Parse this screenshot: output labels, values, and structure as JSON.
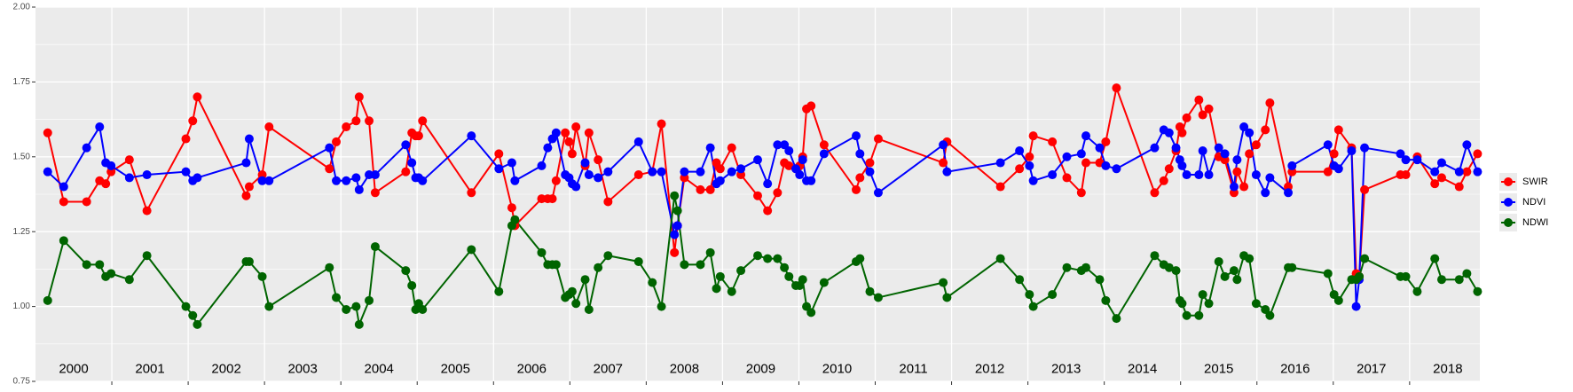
{
  "chart_data": {
    "type": "line",
    "x": [
      2000.16,
      2000.37,
      2000.67,
      2000.84,
      2000.92,
      2000.99,
      2001.23,
      2001.46,
      2001.97,
      2002.06,
      2002.12,
      2002.76,
      2002.8,
      2002.97,
      2003.06,
      2003.85,
      2003.94,
      2004.07,
      2004.2,
      2004.24,
      2004.37,
      2004.45,
      2004.85,
      2004.93,
      2004.98,
      2005.02,
      2005.07,
      2005.71,
      2006.07,
      2006.24,
      2006.28,
      2006.63,
      2006.71,
      2006.77,
      2006.82,
      2006.94,
      2006.99,
      2007.03,
      2007.08,
      2007.2,
      2007.25,
      2007.37,
      2007.5,
      2007.9,
      2008.08,
      2008.2,
      2008.37,
      2008.41,
      2008.5,
      2008.71,
      2008.84,
      2008.92,
      2008.97,
      2009.12,
      2009.24,
      2009.46,
      2009.59,
      2009.72,
      2009.81,
      2009.87,
      2009.96,
      2010.01,
      2010.05,
      2010.1,
      2010.16,
      2010.33,
      2010.75,
      2010.8,
      2010.93,
      2011.04,
      2011.89,
      2011.94,
      2012.64,
      2012.89,
      2013.02,
      2013.07,
      2013.32,
      2013.51,
      2013.7,
      2013.76,
      2013.94,
      2014.02,
      2014.16,
      2014.66,
      2014.78,
      2014.85,
      2014.94,
      2014.99,
      2015.02,
      2015.08,
      2015.24,
      2015.29,
      2015.37,
      2015.5,
      2015.58,
      2015.7,
      2015.74,
      2015.83,
      2015.9,
      2015.99,
      2016.11,
      2016.17,
      2016.41,
      2016.46,
      2016.93,
      2017.01,
      2017.07,
      2017.24,
      2017.3,
      2017.34,
      2017.41,
      2017.88,
      2017.95,
      2018.1,
      2018.33,
      2018.42,
      2018.65,
      2018.75,
      2018.89
    ],
    "series": [
      {
        "name": "SWIR",
        "color": "#ff0000",
        "values": [
          1.58,
          1.35,
          1.35,
          1.42,
          1.41,
          1.45,
          1.49,
          1.32,
          1.56,
          1.62,
          1.7,
          1.37,
          1.4,
          1.44,
          1.6,
          1.46,
          1.55,
          1.6,
          1.62,
          1.7,
          1.62,
          1.38,
          1.45,
          1.58,
          1.57,
          1.57,
          1.62,
          1.38,
          1.51,
          1.33,
          1.27,
          1.36,
          1.36,
          1.36,
          1.42,
          1.58,
          1.55,
          1.51,
          1.6,
          1.47,
          1.58,
          1.49,
          1.35,
          1.44,
          1.45,
          1.61,
          1.18,
          1.27,
          1.43,
          1.39,
          1.39,
          1.48,
          1.46,
          1.53,
          1.44,
          1.37,
          1.32,
          1.38,
          1.48,
          1.47,
          1.46,
          1.47,
          1.5,
          1.66,
          1.67,
          1.54,
          1.39,
          1.43,
          1.48,
          1.56,
          1.48,
          1.55,
          1.4,
          1.46,
          1.5,
          1.57,
          1.55,
          1.43,
          1.38,
          1.48,
          1.48,
          1.55,
          1.73,
          1.38,
          1.42,
          1.46,
          1.52,
          1.6,
          1.58,
          1.63,
          1.69,
          1.64,
          1.66,
          1.5,
          1.49,
          1.38,
          1.45,
          1.4,
          1.51,
          1.54,
          1.59,
          1.68,
          1.4,
          1.45,
          1.45,
          1.51,
          1.59,
          1.53,
          1.11,
          1.1,
          1.39,
          1.44,
          1.44,
          1.5,
          1.41,
          1.43,
          1.4,
          1.45,
          1.51
        ]
      },
      {
        "name": "NDVI",
        "color": "#0000ff",
        "values": [
          1.45,
          1.4,
          1.53,
          1.6,
          1.48,
          1.47,
          1.43,
          1.44,
          1.45,
          1.42,
          1.43,
          1.48,
          1.56,
          1.42,
          1.42,
          1.53,
          1.42,
          1.42,
          1.43,
          1.39,
          1.44,
          1.44,
          1.54,
          1.48,
          1.43,
          1.43,
          1.42,
          1.57,
          1.46,
          1.48,
          1.42,
          1.47,
          1.53,
          1.56,
          1.58,
          1.44,
          1.43,
          1.41,
          1.4,
          1.48,
          1.44,
          1.43,
          1.45,
          1.55,
          1.45,
          1.45,
          1.24,
          1.27,
          1.45,
          1.45,
          1.53,
          1.41,
          1.42,
          1.45,
          1.46,
          1.49,
          1.41,
          1.54,
          1.54,
          1.52,
          1.46,
          1.44,
          1.49,
          1.42,
          1.42,
          1.51,
          1.57,
          1.51,
          1.45,
          1.38,
          1.54,
          1.45,
          1.48,
          1.52,
          1.47,
          1.42,
          1.44,
          1.5,
          1.51,
          1.57,
          1.53,
          1.47,
          1.46,
          1.53,
          1.59,
          1.58,
          1.53,
          1.49,
          1.47,
          1.44,
          1.44,
          1.52,
          1.44,
          1.53,
          1.51,
          1.4,
          1.49,
          1.6,
          1.58,
          1.44,
          1.38,
          1.43,
          1.38,
          1.47,
          1.54,
          1.47,
          1.46,
          1.52,
          1.0,
          1.09,
          1.53,
          1.51,
          1.49,
          1.49,
          1.45,
          1.48,
          1.45,
          1.54,
          1.45
        ]
      },
      {
        "name": "NDWI",
        "color": "#006400",
        "values": [
          1.02,
          1.22,
          1.14,
          1.14,
          1.1,
          1.11,
          1.09,
          1.17,
          1.0,
          0.97,
          0.94,
          1.15,
          1.15,
          1.1,
          1.0,
          1.13,
          1.03,
          0.99,
          1.0,
          0.94,
          1.02,
          1.2,
          1.12,
          1.07,
          0.99,
          1.01,
          0.99,
          1.19,
          1.05,
          1.27,
          1.29,
          1.18,
          1.14,
          1.14,
          1.14,
          1.03,
          1.04,
          1.05,
          1.01,
          1.09,
          0.99,
          1.13,
          1.17,
          1.15,
          1.08,
          1.0,
          1.37,
          1.32,
          1.14,
          1.14,
          1.18,
          1.06,
          1.1,
          1.05,
          1.12,
          1.17,
          1.16,
          1.16,
          1.13,
          1.1,
          1.07,
          1.07,
          1.09,
          1.0,
          0.98,
          1.08,
          1.15,
          1.16,
          1.05,
          1.03,
          1.08,
          1.03,
          1.16,
          1.09,
          1.04,
          1.0,
          1.04,
          1.13,
          1.12,
          1.13,
          1.09,
          1.02,
          0.96,
          1.17,
          1.14,
          1.13,
          1.12,
          1.02,
          1.01,
          0.97,
          0.97,
          1.04,
          1.01,
          1.15,
          1.1,
          1.12,
          1.09,
          1.17,
          1.16,
          1.01,
          0.99,
          0.97,
          1.13,
          1.13,
          1.11,
          1.04,
          1.02,
          1.09,
          1.09,
          1.1,
          1.16,
          1.1,
          1.1,
          1.05,
          1.16,
          1.09,
          1.09,
          1.11,
          1.05
        ]
      }
    ],
    "xlim": [
      2000,
      2018.92
    ],
    "xticks": [
      2001,
      2002,
      2003,
      2004,
      2005,
      2006,
      2007,
      2008,
      2009,
      2010,
      2011,
      2012,
      2013,
      2014,
      2015,
      2016,
      2017,
      2018
    ],
    "ylim": [
      0.75,
      2.0
    ],
    "yticks": [
      0.75,
      {
        "value": 1,
        "label": "1.00"
      },
      1.25,
      {
        "value": 1.5,
        "label": "1.50"
      },
      1.75,
      {
        "value": 2,
        "label": "2.00"
      }
    ],
    "annotations": [
      {
        "text": "2000",
        "x": 2000.5,
        "y": 0.79
      },
      {
        "text": "2001",
        "x": 2001.5,
        "y": 0.79
      },
      {
        "text": "2002",
        "x": 2002.5,
        "y": 0.79
      },
      {
        "text": "2003",
        "x": 2003.5,
        "y": 0.79
      },
      {
        "text": "2004",
        "x": 2004.5,
        "y": 0.79
      },
      {
        "text": "2005",
        "x": 2005.5,
        "y": 0.79
      },
      {
        "text": "2006",
        "x": 2006.5,
        "y": 0.79
      },
      {
        "text": "2007",
        "x": 2007.5,
        "y": 0.79
      },
      {
        "text": "2008",
        "x": 2008.5,
        "y": 0.79
      },
      {
        "text": "2009",
        "x": 2009.5,
        "y": 0.79
      },
      {
        "text": "2010",
        "x": 2010.5,
        "y": 0.79
      },
      {
        "text": "2011",
        "x": 2011.5,
        "y": 0.79
      },
      {
        "text": "2012",
        "x": 2012.5,
        "y": 0.79
      },
      {
        "text": "2013",
        "x": 2013.5,
        "y": 0.79
      },
      {
        "text": "2014",
        "x": 2014.5,
        "y": 0.79
      },
      {
        "text": "2015",
        "x": 2015.5,
        "y": 0.79
      },
      {
        "text": "2016",
        "x": 2016.5,
        "y": 0.79
      },
      {
        "text": "2017",
        "x": 2017.5,
        "y": 0.79
      },
      {
        "text": "2018",
        "x": 2018.5,
        "y": 0.79
      }
    ],
    "grid": true,
    "legend": "right"
  }
}
